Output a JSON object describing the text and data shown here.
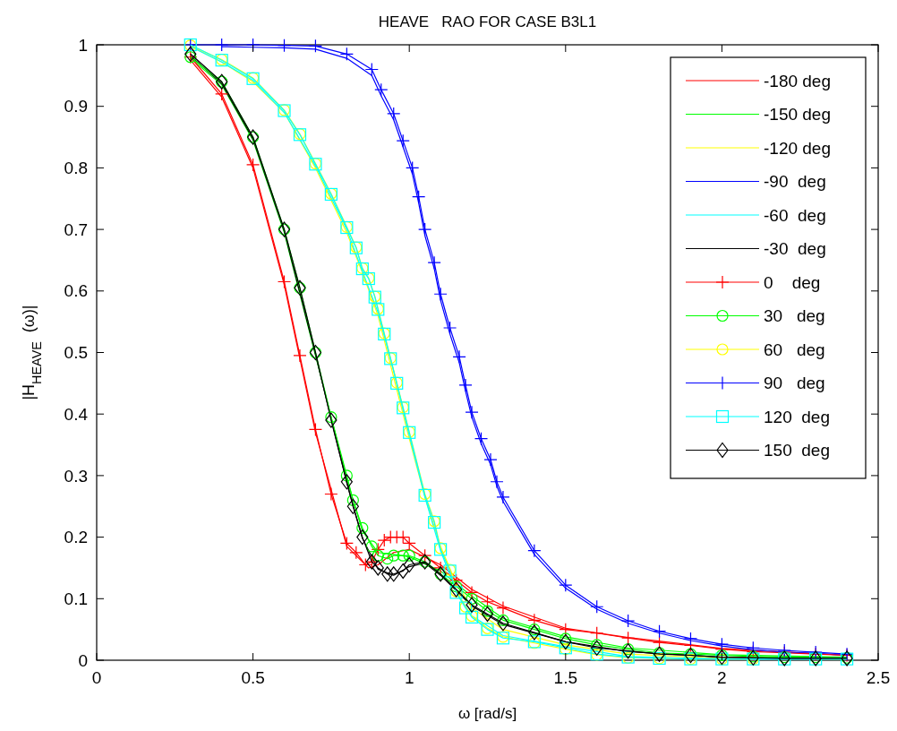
{
  "chart_data": {
    "type": "line",
    "title": "HEAVE   RAO FOR CASE B3L1",
    "xlabel": "ω [rad/s]",
    "ylabel": "|H$_{HEAVE}$  (ω)|",
    "xlim": [
      0,
      2.5
    ],
    "xticks": [
      0,
      0.5,
      1,
      1.5,
      2,
      2.5
    ],
    "ylim": [
      0,
      1
    ],
    "yticks": [
      0,
      0.1,
      0.2,
      0.3,
      0.4,
      0.5,
      0.6,
      0.7,
      0.8,
      0.9,
      1
    ],
    "grid": false,
    "legend": "top right",
    "series": [
      {
        "name": "-180 deg",
        "color": "#ff0000",
        "marker": "none",
        "x": [
          0.3,
          0.4,
          0.5,
          0.6,
          0.7,
          0.8,
          0.85,
          0.87,
          0.9,
          0.95,
          1.0,
          1.1,
          1.2,
          1.3,
          1.5,
          1.7,
          2.0,
          2.4
        ],
        "values": [
          0.975,
          0.915,
          0.8,
          0.61,
          0.37,
          0.185,
          0.16,
          0.15,
          0.155,
          0.175,
          0.18,
          0.155,
          0.115,
          0.088,
          0.052,
          0.037,
          0.019,
          0.008
        ]
      },
      {
        "name": "-150 deg",
        "color": "#00ff00",
        "marker": "none",
        "x": [
          0.3,
          0.4,
          0.5,
          0.6,
          0.7,
          0.8,
          0.85,
          0.9,
          0.95,
          1.0,
          1.1,
          1.2,
          1.3,
          1.5,
          1.7,
          2.0,
          2.4
        ],
        "values": [
          0.978,
          0.935,
          0.845,
          0.695,
          0.495,
          0.295,
          0.21,
          0.175,
          0.172,
          0.168,
          0.145,
          0.104,
          0.068,
          0.038,
          0.02,
          0.009,
          0.005
        ]
      },
      {
        "name": "-120 deg",
        "color": "#ffff00",
        "marker": "none",
        "x": [
          0.3,
          0.4,
          0.5,
          0.6,
          0.7,
          0.8,
          0.85,
          0.9,
          0.95,
          1.0,
          1.05,
          1.1,
          1.15,
          1.2,
          1.3,
          1.5,
          1.7,
          2.0,
          2.4
        ],
        "values": [
          0.998,
          0.972,
          0.94,
          0.89,
          0.8,
          0.695,
          0.63,
          0.56,
          0.46,
          0.36,
          0.265,
          0.185,
          0.125,
          0.085,
          0.05,
          0.025,
          0.01,
          0.003,
          0.002
        ]
      },
      {
        "name": "-90  deg",
        "color": "#0000ff",
        "marker": "none",
        "x": [
          0.4,
          0.5,
          0.6,
          0.7,
          0.8,
          0.88,
          0.91,
          0.95,
          0.98,
          1.01,
          1.03,
          1.05,
          1.08,
          1.1,
          1.13,
          1.16,
          1.18,
          1.2,
          1.23,
          1.26,
          1.28,
          1.3,
          1.4,
          1.5,
          1.6,
          1.7,
          1.8,
          1.9,
          2.0,
          2.1,
          2.2,
          2.3,
          2.4
        ],
        "values": [
          0.997,
          0.996,
          0.995,
          0.993,
          0.978,
          0.95,
          0.917,
          0.878,
          0.834,
          0.79,
          0.743,
          0.69,
          0.636,
          0.585,
          0.53,
          0.483,
          0.437,
          0.395,
          0.352,
          0.318,
          0.283,
          0.258,
          0.172,
          0.117,
          0.083,
          0.06,
          0.044,
          0.032,
          0.023,
          0.017,
          0.013,
          0.011,
          0.008
        ]
      },
      {
        "name": "-60  deg",
        "color": "#00ffff",
        "marker": "none",
        "x": [
          0.3,
          0.4,
          0.5,
          0.6,
          0.7,
          0.8,
          0.85,
          0.9,
          0.95,
          1.0,
          1.05,
          1.1,
          1.15,
          1.2,
          1.3,
          1.5,
          1.7,
          2.0,
          2.4
        ],
        "values": [
          0.997,
          0.972,
          0.942,
          0.89,
          0.803,
          0.7,
          0.632,
          0.565,
          0.47,
          0.365,
          0.265,
          0.178,
          0.112,
          0.072,
          0.04,
          0.022,
          0.006,
          0.002,
          0.002
        ]
      },
      {
        "name": "-30  deg",
        "color": "#000000",
        "marker": "none",
        "x": [
          0.3,
          0.4,
          0.5,
          0.6,
          0.7,
          0.8,
          0.85,
          0.9,
          0.95,
          1.0,
          1.05,
          1.1,
          1.2,
          1.3,
          1.5,
          1.7,
          2.0,
          2.4
        ],
        "values": [
          0.982,
          0.937,
          0.847,
          0.697,
          0.497,
          0.288,
          0.198,
          0.148,
          0.138,
          0.152,
          0.158,
          0.138,
          0.088,
          0.058,
          0.03,
          0.014,
          0.005,
          0.003
        ]
      },
      {
        "name": "0    deg",
        "color": "#ff0000",
        "marker": "cross",
        "x": [
          0.3,
          0.4,
          0.5,
          0.6,
          0.65,
          0.7,
          0.75,
          0.8,
          0.83,
          0.86,
          0.88,
          0.9,
          0.92,
          0.94,
          0.96,
          0.98,
          1.0,
          1.05,
          1.1,
          1.15,
          1.2,
          1.25,
          1.3,
          1.4,
          1.5,
          1.6,
          1.7,
          1.8,
          1.9,
          2.0,
          2.1,
          2.2,
          2.3,
          2.4
        ],
        "values": [
          0.98,
          0.92,
          0.805,
          0.615,
          0.495,
          0.375,
          0.27,
          0.19,
          0.175,
          0.155,
          0.16,
          0.18,
          0.195,
          0.2,
          0.2,
          0.2,
          0.19,
          0.17,
          0.15,
          0.13,
          0.11,
          0.095,
          0.085,
          0.065,
          0.05,
          0.044,
          0.036,
          0.029,
          0.024,
          0.018,
          0.014,
          0.012,
          0.01,
          0.008
        ]
      },
      {
        "name": "30   deg",
        "color": "#00ff00",
        "marker": "circle",
        "x": [
          0.3,
          0.4,
          0.5,
          0.6,
          0.65,
          0.7,
          0.75,
          0.8,
          0.82,
          0.85,
          0.88,
          0.9,
          0.93,
          0.95,
          0.98,
          1.0,
          1.05,
          1.1,
          1.15,
          1.2,
          1.25,
          1.3,
          1.4,
          1.5,
          1.6,
          1.7,
          1.8,
          1.9,
          2.0,
          2.1,
          2.2,
          2.3,
          2.4
        ],
        "values": [
          0.98,
          0.94,
          0.85,
          0.7,
          0.605,
          0.5,
          0.395,
          0.3,
          0.26,
          0.215,
          0.185,
          0.17,
          0.165,
          0.17,
          0.17,
          0.17,
          0.16,
          0.14,
          0.12,
          0.1,
          0.08,
          0.065,
          0.05,
          0.035,
          0.025,
          0.018,
          0.012,
          0.01,
          0.008,
          0.006,
          0.005,
          0.005,
          0.004
        ]
      },
      {
        "name": "60   deg",
        "color": "#ffff00",
        "marker": "circle",
        "x": [
          0.3,
          0.4,
          0.5,
          0.6,
          0.65,
          0.7,
          0.75,
          0.8,
          0.83,
          0.85,
          0.87,
          0.89,
          0.9,
          0.92,
          0.94,
          0.96,
          0.98,
          1.0,
          1.05,
          1.08,
          1.1,
          1.13,
          1.15,
          1.18,
          1.2,
          1.25,
          1.3,
          1.4,
          1.5,
          1.6,
          1.7,
          1.8,
          1.9,
          2.0,
          2.1
        ],
        "values": [
          0.999,
          0.976,
          0.946,
          0.894,
          0.855,
          0.807,
          0.758,
          0.704,
          0.671,
          0.637,
          0.621,
          0.591,
          0.571,
          0.531,
          0.491,
          0.451,
          0.411,
          0.371,
          0.27,
          0.226,
          0.182,
          0.147,
          0.112,
          0.087,
          0.072,
          0.052,
          0.038,
          0.028,
          0.018,
          0.009,
          0.004,
          0.003,
          0.002,
          0.002,
          0.002
        ]
      },
      {
        "name": "90   deg",
        "color": "#0000ff",
        "marker": "cross",
        "x": [
          0.3,
          0.4,
          0.5,
          0.6,
          0.7,
          0.8,
          0.88,
          0.91,
          0.95,
          0.98,
          1.01,
          1.03,
          1.05,
          1.08,
          1.1,
          1.13,
          1.16,
          1.18,
          1.2,
          1.23,
          1.26,
          1.28,
          1.3,
          1.4,
          1.5,
          1.6,
          1.7,
          1.8,
          1.9,
          2.0,
          2.1,
          2.2,
          2.3,
          2.4
        ],
        "values": [
          1.0,
          1.0,
          1.0,
          0.999,
          0.998,
          0.985,
          0.96,
          0.927,
          0.888,
          0.844,
          0.8,
          0.753,
          0.7,
          0.646,
          0.595,
          0.54,
          0.493,
          0.447,
          0.403,
          0.36,
          0.326,
          0.29,
          0.265,
          0.178,
          0.122,
          0.087,
          0.064,
          0.047,
          0.035,
          0.026,
          0.02,
          0.016,
          0.013,
          0.01
        ]
      },
      {
        "name": "120  deg",
        "color": "#00ffff",
        "marker": "square",
        "x": [
          0.3,
          0.4,
          0.5,
          0.6,
          0.65,
          0.7,
          0.75,
          0.8,
          0.83,
          0.85,
          0.87,
          0.89,
          0.9,
          0.92,
          0.94,
          0.96,
          0.98,
          1.0,
          1.05,
          1.08,
          1.1,
          1.13,
          1.15,
          1.18,
          1.2,
          1.25,
          1.3,
          1.4,
          1.5,
          1.6,
          1.7,
          1.8,
          1.9,
          2.0,
          2.1,
          2.2,
          2.3,
          2.4
        ],
        "values": [
          1.0,
          0.975,
          0.945,
          0.893,
          0.854,
          0.806,
          0.757,
          0.703,
          0.67,
          0.636,
          0.62,
          0.59,
          0.57,
          0.53,
          0.49,
          0.45,
          0.41,
          0.37,
          0.268,
          0.224,
          0.18,
          0.145,
          0.11,
          0.085,
          0.07,
          0.05,
          0.036,
          0.03,
          0.02,
          0.01,
          0.005,
          0.003,
          0.002,
          0.002,
          0.002,
          0.002,
          0.002,
          0.002
        ]
      },
      {
        "name": "150  deg",
        "color": "#000000",
        "marker": "diamond",
        "x": [
          0.3,
          0.4,
          0.5,
          0.6,
          0.65,
          0.7,
          0.75,
          0.8,
          0.82,
          0.85,
          0.88,
          0.9,
          0.93,
          0.95,
          0.98,
          1.0,
          1.05,
          1.1,
          1.15,
          1.2,
          1.25,
          1.3,
          1.4,
          1.5,
          1.6,
          1.7,
          1.8,
          1.9,
          2.0,
          2.1,
          2.2,
          2.3,
          2.4
        ],
        "values": [
          0.985,
          0.94,
          0.85,
          0.7,
          0.605,
          0.5,
          0.39,
          0.29,
          0.25,
          0.2,
          0.16,
          0.15,
          0.14,
          0.14,
          0.145,
          0.155,
          0.16,
          0.14,
          0.115,
          0.09,
          0.075,
          0.06,
          0.045,
          0.03,
          0.02,
          0.015,
          0.01,
          0.008,
          0.005,
          0.004,
          0.003,
          0.003,
          0.003
        ]
      }
    ]
  }
}
